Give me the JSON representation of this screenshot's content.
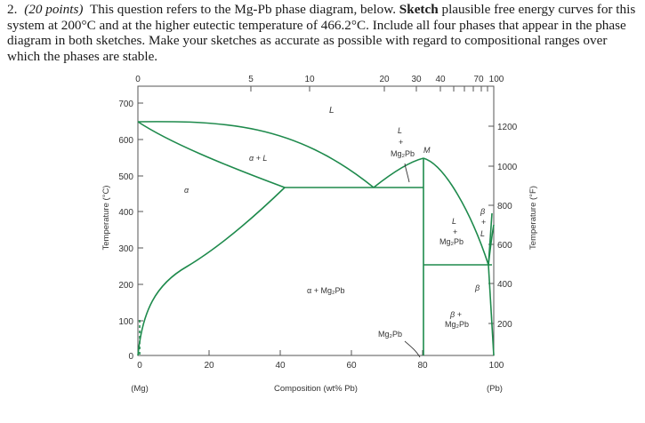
{
  "question": {
    "number": "2.",
    "points": "(20 points)",
    "part1": "This question refers to the Mg-Pb phase diagram, below.",
    "bold_word": "Sketch",
    "part2": "plausible free energy curves for this system at 200°C and at the higher eutectic temperature of 466.2°C. Include all four phases that appear in the phase diagram in both sketches. Make your sketches as accurate as possible with regard to compositional ranges over which the phases are stable."
  },
  "diagram": {
    "top_axis_ticks": [
      "0",
      "5",
      "10",
      "20",
      "30",
      "40",
      "70",
      "100"
    ],
    "left_ticks": [
      "700",
      "600",
      "500",
      "400",
      "300",
      "200",
      "100",
      "0"
    ],
    "right_ticks": [
      "1200",
      "1000",
      "800",
      "600",
      "400",
      "200"
    ],
    "bottom_ticks": [
      "0",
      "20",
      "40",
      "60",
      "80",
      "100"
    ],
    "left_axis_label": "Temperature (°C)",
    "right_axis_label": "Temperature (°F)",
    "x_axis_label": "Composition (wt% Pb)",
    "left_end_label": "(Mg)",
    "right_end_label": "(Pb)",
    "labels": {
      "L_top": "L",
      "alpha_plus_L": "α + L",
      "alpha": "α",
      "L_plus_Mg2Pb_L": "L",
      "plus1": "+",
      "Mg2Pb1": "Mg₂Pb",
      "M": "M",
      "alpha_plus_Mg2Pb": "α + Mg₂Pb",
      "Mg2Pb_bottom": "Mg₂Pb",
      "right_L": "L",
      "plus2": "+",
      "Mg2Pb2": "Mg₂Pb",
      "beta": "β",
      "plus3": "+",
      "L_right": "L",
      "beta_small": "β",
      "beta_plus": "β +",
      "Mg2Pb3": "Mg₂Pb"
    },
    "line_color": "#1e8a4c",
    "frame_color": "#555555"
  }
}
